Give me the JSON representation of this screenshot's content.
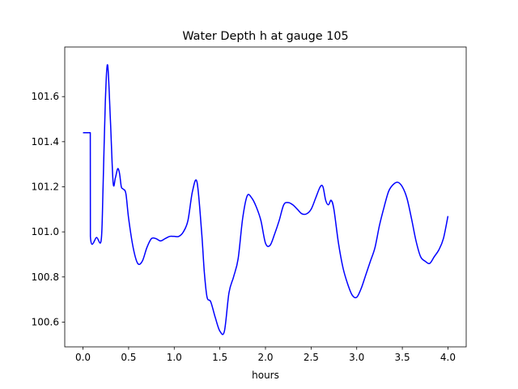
{
  "chart_data": {
    "type": "line",
    "title": "Water Depth h at gauge 105",
    "xlabel": "hours",
    "ylabel": "",
    "xlim": [
      -0.2,
      4.2
    ],
    "ylim": [
      100.49,
      101.82
    ],
    "xticks": [
      0.0,
      0.5,
      1.0,
      1.5,
      2.0,
      2.5,
      3.0,
      3.5,
      4.0
    ],
    "xtick_labels": [
      "0.0",
      "0.5",
      "1.0",
      "1.5",
      "2.0",
      "2.5",
      "3.0",
      "3.5",
      "4.0"
    ],
    "yticks": [
      100.6,
      100.8,
      101.0,
      101.2,
      101.4,
      101.6
    ],
    "ytick_labels": [
      "100.6",
      "100.8",
      "101.0",
      "101.2",
      "101.4",
      "101.6"
    ],
    "grid": false,
    "series": [
      {
        "color": "#0000ff",
        "x": [
          0.0,
          0.08,
          0.081,
          0.15,
          0.2,
          0.22,
          0.245,
          0.27,
          0.3,
          0.33,
          0.355,
          0.38,
          0.4,
          0.42,
          0.44,
          0.47,
          0.5,
          0.55,
          0.6,
          0.65,
          0.7,
          0.75,
          0.8,
          0.85,
          0.9,
          0.95,
          1.0,
          1.05,
          1.1,
          1.15,
          1.2,
          1.25,
          1.3,
          1.33,
          1.36,
          1.4,
          1.45,
          1.5,
          1.55,
          1.6,
          1.65,
          1.7,
          1.75,
          1.8,
          1.85,
          1.9,
          1.95,
          2.0,
          2.05,
          2.1,
          2.15,
          2.2,
          2.25,
          2.3,
          2.35,
          2.4,
          2.45,
          2.5,
          2.55,
          2.6,
          2.63,
          2.66,
          2.69,
          2.72,
          2.75,
          2.8,
          2.85,
          2.9,
          2.95,
          3.0,
          3.05,
          3.1,
          3.15,
          3.2,
          3.25,
          3.3,
          3.35,
          3.4,
          3.45,
          3.5,
          3.55,
          3.6,
          3.65,
          3.7,
          3.75,
          3.8,
          3.85,
          3.9,
          3.95,
          4.0
        ],
        "y": [
          101.44,
          101.44,
          100.98,
          100.975,
          100.965,
          101.2,
          101.58,
          101.74,
          101.5,
          101.22,
          101.24,
          101.28,
          101.26,
          101.2,
          101.19,
          101.17,
          101.06,
          100.93,
          100.86,
          100.87,
          100.93,
          100.97,
          100.97,
          100.96,
          100.97,
          100.98,
          100.98,
          100.98,
          101.0,
          101.05,
          101.18,
          101.22,
          101.0,
          100.82,
          100.71,
          100.69,
          100.62,
          100.56,
          100.56,
          100.73,
          100.8,
          100.88,
          101.06,
          101.16,
          101.15,
          101.11,
          101.05,
          100.95,
          100.94,
          100.99,
          101.05,
          101.12,
          101.13,
          101.12,
          101.1,
          101.08,
          101.08,
          101.1,
          101.15,
          101.2,
          101.2,
          101.14,
          101.12,
          101.14,
          101.1,
          100.95,
          100.84,
          100.77,
          100.72,
          100.71,
          100.75,
          100.81,
          100.87,
          100.93,
          101.03,
          101.11,
          101.18,
          101.21,
          101.22,
          101.2,
          101.15,
          101.06,
          100.96,
          100.89,
          100.87,
          100.86,
          100.89,
          100.92,
          100.97,
          101.07
        ]
      }
    ]
  }
}
